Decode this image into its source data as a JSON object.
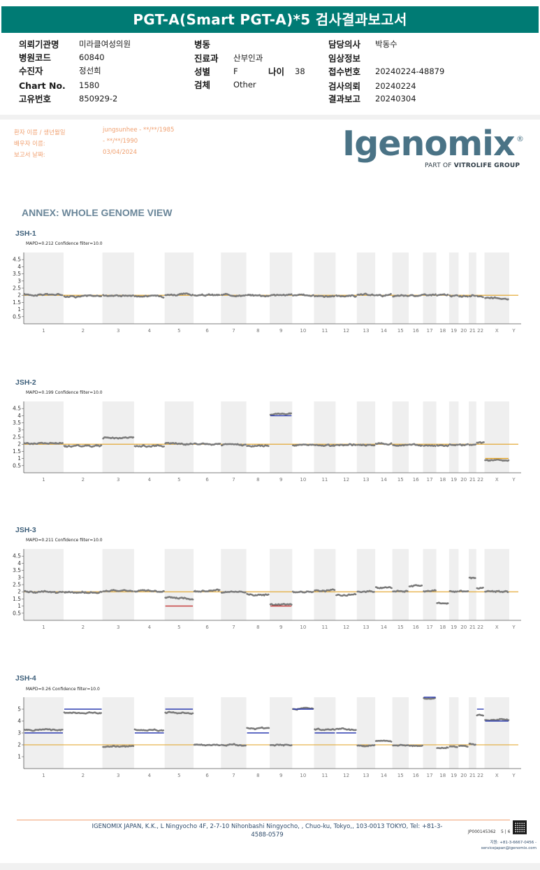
{
  "report": {
    "title": "PGT-A(Smart PGT-A)*5 검사결과보고서",
    "col1": [
      {
        "label": "의뢰기관명",
        "value": "미라클여성의원"
      },
      {
        "label": "병원코드",
        "value": "60840"
      },
      {
        "label": "수진자",
        "value": "정선희"
      },
      {
        "label": "Chart No.",
        "value": "1580"
      },
      {
        "label": "고유번호",
        "value": "850929-2"
      }
    ],
    "col2": [
      {
        "label": "병동",
        "value": ""
      },
      {
        "label": "진료과",
        "value": "산부인과"
      },
      {
        "label": "성별",
        "value": "F"
      },
      {
        "label": "검체",
        "value": "Other"
      }
    ],
    "age": {
      "label": "나이",
      "value": "38"
    },
    "col3": [
      {
        "label": "담당의사",
        "value": "박동수"
      },
      {
        "label": "임상정보",
        "value": ""
      },
      {
        "label": "접수번호",
        "value": "20240224-48879"
      },
      {
        "label": "검사의뢰",
        "value": "20240224"
      },
      {
        "label": "결과보고",
        "value": "20240304"
      }
    ]
  },
  "patient": {
    "rows": [
      {
        "label": "환자 이름 / 생년월일",
        "value": "jungsunhee - **/**/1985"
      },
      {
        "label": "배우자 이름:",
        "value": " - **/**/1990"
      },
      {
        "label": "보고서 날짜:",
        "value": "03/04/2024"
      }
    ]
  },
  "logo": {
    "word": "Igenomix",
    "reg": "®",
    "tagline_prefix": "PART OF",
    "tagline_brand": "VITROLIFE GROUP"
  },
  "annex": {
    "title": "ANNEX: WHOLE GENOME VIEW"
  },
  "chromosomes": [
    "1",
    "2",
    "3",
    "4",
    "5",
    "6",
    "7",
    "8",
    "9",
    "10",
    "11",
    "12",
    "13",
    "14",
    "15",
    "16",
    "17",
    "18",
    "19",
    "20",
    "21",
    "22",
    "X",
    "Y"
  ],
  "colors": {
    "header": "#007b74",
    "baseline": "#e0a020",
    "call_blue": "#2b3bb0",
    "call_red": "#c23030",
    "points": "#7a7a7a",
    "band": "#efefef"
  },
  "chart_data": [
    {
      "type": "scatter",
      "name": "JSH-1",
      "mapd": "MAPD=0.212 Confidence filter=10.0",
      "yticks": [
        "0.5",
        "1",
        "1.5",
        "2",
        "2.5",
        "3",
        "3.5",
        "4",
        "4.5"
      ],
      "ylim": [
        0,
        5
      ],
      "baseline": 2,
      "levels": [
        2.05,
        1.95,
        2.0,
        1.95,
        2.05,
        2.0,
        2.02,
        2.0,
        2.02,
        2.0,
        1.95,
        1.95,
        2.0,
        2.0,
        1.95,
        2.0,
        2.05,
        2.0,
        1.95,
        1.95,
        1.95,
        1.95,
        1.75,
        null
      ],
      "calls": []
    },
    {
      "type": "scatter",
      "name": "JSH-2",
      "mapd": "MAPD=0.199 Confidence filter=10.0",
      "yticks": [
        "0.5",
        "1",
        "1.5",
        "2",
        "2.5",
        "3",
        "3.5",
        "4",
        "4.5"
      ],
      "ylim": [
        0,
        5
      ],
      "baseline": 2,
      "levels": [
        2.05,
        1.9,
        2.45,
        1.9,
        2.05,
        2.05,
        1.95,
        1.9,
        4.1,
        1.95,
        1.9,
        1.95,
        1.95,
        2.05,
        1.95,
        1.95,
        1.9,
        1.95,
        1.95,
        1.95,
        1.95,
        2.1,
        0.85,
        null
      ],
      "calls": [
        {
          "chr": "9",
          "value": 4,
          "color": "blue"
        },
        {
          "chr": "X",
          "value": 1,
          "color": "orange"
        }
      ]
    },
    {
      "type": "scatter",
      "name": "JSH-3",
      "mapd": "MAPD=0.211 Confidence filter=10.0",
      "yticks": [
        "0.5",
        "1",
        "1.5",
        "2",
        "2.5",
        "3",
        "3.5",
        "4",
        "4.5"
      ],
      "ylim": [
        0,
        5
      ],
      "baseline": 2,
      "levels": [
        2.0,
        1.95,
        2.05,
        2.05,
        1.55,
        2.05,
        1.95,
        1.8,
        1.15,
        2.0,
        2.1,
        1.8,
        2.0,
        2.3,
        2.0,
        2.4,
        2.05,
        1.2,
        2.0,
        2.05,
        3.0,
        2.2,
        2.0,
        null
      ],
      "calls": [
        {
          "chr": "5",
          "value": 1,
          "color": "red"
        },
        {
          "chr": "9",
          "value": 1,
          "color": "red"
        }
      ]
    },
    {
      "type": "scatter",
      "name": "JSH-4",
      "mapd": "MAPD=0.26 Confidence filter=10.0",
      "yticks": [
        "1",
        "2",
        "3",
        "4",
        "5"
      ],
      "ylim": [
        0,
        6
      ],
      "baseline": 2,
      "levels": [
        3.25,
        4.7,
        1.85,
        3.25,
        4.7,
        2.0,
        2.0,
        3.4,
        2.0,
        5.0,
        3.3,
        3.3,
        1.95,
        2.3,
        1.95,
        1.95,
        5.9,
        1.75,
        1.85,
        1.9,
        2.05,
        4.5,
        4.1,
        null
      ],
      "calls": [
        {
          "chr": "1",
          "value": 3,
          "color": "blue"
        },
        {
          "chr": "2",
          "value": 5,
          "color": "blue"
        },
        {
          "chr": "4",
          "value": 3,
          "color": "blue"
        },
        {
          "chr": "5",
          "value": 5,
          "color": "blue"
        },
        {
          "chr": "8",
          "value": 3,
          "color": "blue"
        },
        {
          "chr": "10",
          "value": 5,
          "color": "blue"
        },
        {
          "chr": "11",
          "value": 3,
          "color": "blue"
        },
        {
          "chr": "12",
          "value": 3,
          "color": "blue"
        },
        {
          "chr": "17",
          "value": 6,
          "color": "blue"
        },
        {
          "chr": "22",
          "value": 5,
          "color": "blue"
        },
        {
          "chr": "X",
          "value": 4,
          "color": "blue"
        }
      ]
    }
  ],
  "footer": {
    "address": "IGENOMIX JAPAN, K.K., L Ningyocho 4F, 2-7-10 Nihonbashi Ningyocho, , Chuo-ku, Tokyo,, 103-0013 TOKYO, Tel: +81-3-4588-0579",
    "doc_id": "JP000145362",
    "page": "5 | 6",
    "contact_line1": "지원: +81-3-6667-0456 -",
    "contact_line2": "servicejapan@igenomix.com"
  }
}
